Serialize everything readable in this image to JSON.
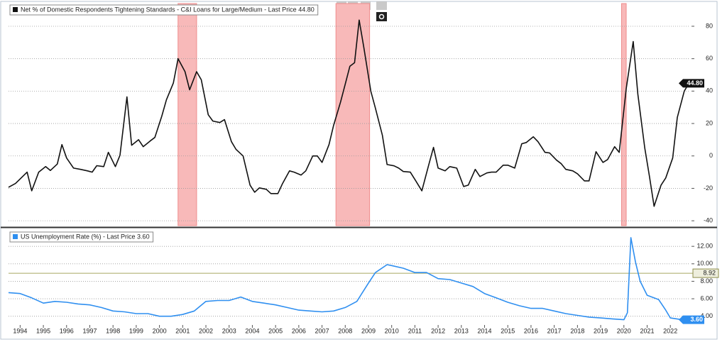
{
  "chart_data": [
    {
      "type": "line",
      "xlim": [
        1993.5,
        2022.85
      ],
      "ylim": [
        -43,
        94
      ],
      "yticks": [
        -40,
        -20,
        0,
        20,
        40,
        60,
        80
      ],
      "grid": true,
      "recession_bands": [
        [
          2000.8,
          2001.6
        ],
        [
          2007.6,
          2009.05
        ],
        [
          2019.9,
          2020.1
        ]
      ],
      "last_value": {
        "value": 44.8,
        "label": "44.80"
      },
      "x": [
        1993.5,
        1993.8,
        1994.3,
        1994.5,
        1994.8,
        1995.1,
        1995.3,
        1995.6,
        1995.8,
        1996.0,
        1996.3,
        1996.6,
        1996.9,
        1997.1,
        1997.3,
        1997.6,
        1997.8,
        1998.1,
        1998.3,
        1998.6,
        1998.8,
        1999.1,
        1999.3,
        1999.6,
        1999.8,
        2000.1,
        2000.3,
        2000.6,
        2000.8,
        2001.1,
        2001.3,
        2001.6,
        2001.8,
        2002.1,
        2002.3,
        2002.6,
        2002.8,
        2003.1,
        2003.3,
        2003.6,
        2003.9,
        2004.1,
        2004.3,
        2004.6,
        2004.8,
        2005.1,
        2005.3,
        2005.6,
        2005.8,
        2006.1,
        2006.3,
        2006.6,
        2006.8,
        2007.0,
        2007.3,
        2007.5,
        2007.8,
        2008.0,
        2008.2,
        2008.4,
        2008.6,
        2008.8,
        2009.1,
        2009.3,
        2009.6,
        2009.8,
        2010.1,
        2010.3,
        2010.5,
        2010.8,
        2011.0,
        2011.3,
        2011.6,
        2011.8,
        2012.0,
        2012.3,
        2012.5,
        2012.8,
        2013.1,
        2013.3,
        2013.6,
        2013.8,
        2014.1,
        2014.3,
        2014.5,
        2014.8,
        2015.0,
        2015.3,
        2015.6,
        2015.8,
        2016.1,
        2016.3,
        2016.6,
        2016.8,
        2017.1,
        2017.3,
        2017.5,
        2017.8,
        2018.0,
        2018.3,
        2018.5,
        2018.8,
        2019.1,
        2019.3,
        2019.6,
        2019.8,
        2020.1,
        2020.4,
        2020.6,
        2020.9,
        2021.1,
        2021.3,
        2021.6,
        2021.8,
        2022.1,
        2022.3,
        2022.6,
        2022.8
      ],
      "series": [
        {
          "name": "Net % of Domestic Respondents Tightening Standards - C&I Loans for Large/Medium - Last Price 44.80",
          "color": "#111111",
          "values": [
            -19.3,
            -17,
            -10,
            -21.5,
            -10,
            -6.6,
            -9,
            -5,
            7,
            -1.3,
            -7.5,
            -8.3,
            -9.2,
            -10,
            -6,
            -6.6,
            2.2,
            -6.6,
            0.4,
            36.4,
            6.6,
            10,
            5.7,
            9.2,
            11.4,
            24.6,
            34.6,
            45,
            60,
            52,
            40.8,
            52,
            47,
            25.4,
            21.5,
            20.6,
            22.4,
            8.8,
            4,
            0,
            -18,
            -22.4,
            -19.7,
            -20.6,
            -23.2,
            -23.2,
            -17,
            -9.2,
            -10,
            -11.8,
            -9.2,
            0,
            0,
            -4,
            7,
            18.9,
            33.3,
            44.3,
            55.3,
            57.5,
            83.8,
            67.1,
            40,
            29.4,
            12.7,
            -5.3,
            -6.1,
            -7.5,
            -9.6,
            -10,
            -14.5,
            -21.5,
            -5.3,
            5.3,
            -7.5,
            -9.2,
            -6.6,
            -7.5,
            -18.9,
            -18,
            -8.3,
            -12.7,
            -10.5,
            -10,
            -10,
            -5.7,
            -5.7,
            -7.5,
            7.5,
            8.3,
            11.8,
            8.8,
            2.2,
            1.8,
            -2.6,
            -4.8,
            -8.3,
            -9.2,
            -11,
            -15.4,
            -15.4,
            2.6,
            -4,
            -2.2,
            5.7,
            2.2,
            41.7,
            70.6,
            38.2,
            4.8,
            -12.7,
            -31.1,
            -18,
            -13.6,
            -1.3,
            23.7,
            40,
            44.8
          ]
        }
      ]
    },
    {
      "type": "line",
      "xlim": [
        1993.5,
        2022.85
      ],
      "ylim": [
        3.0,
        13.8
      ],
      "yticks": [
        {
          "value": 4,
          "label": "4.00"
        },
        {
          "value": 6,
          "label": "6.00"
        },
        {
          "value": 8,
          "label": "8.00"
        },
        {
          "value": 10,
          "label": "10.00"
        },
        {
          "value": 12,
          "label": "12.00"
        }
      ],
      "xticks": [
        {
          "value": 1994,
          "label": "1994"
        },
        {
          "value": 1995,
          "label": "1995"
        },
        {
          "value": 1996,
          "label": "1996"
        },
        {
          "value": 1997,
          "label": "1997"
        },
        {
          "value": 1998,
          "label": "1998"
        },
        {
          "value": 1999,
          "label": "1999"
        },
        {
          "value": 2000,
          "label": "2000"
        },
        {
          "value": 2001,
          "label": "2001"
        },
        {
          "value": 2002,
          "label": "2002"
        },
        {
          "value": 2003,
          "label": "2003"
        },
        {
          "value": 2004,
          "label": "2004"
        },
        {
          "value": 2005,
          "label": "2005"
        },
        {
          "value": 2006,
          "label": "2006"
        },
        {
          "value": 2007,
          "label": "2007"
        },
        {
          "value": 2008,
          "label": "2008"
        },
        {
          "value": 2009,
          "label": "2009"
        },
        {
          "value": 2010,
          "label": "2010"
        },
        {
          "value": 2011,
          "label": "2011"
        },
        {
          "value": 2012,
          "label": "2012"
        },
        {
          "value": 2013,
          "label": "2013"
        },
        {
          "value": 2014,
          "label": "2014"
        },
        {
          "value": 2015,
          "label": "2015"
        },
        {
          "value": 2016,
          "label": "2016"
        },
        {
          "value": 2017,
          "label": "2017"
        },
        {
          "value": 2018,
          "label": "2018"
        },
        {
          "value": 2019,
          "label": "2019"
        },
        {
          "value": 2020,
          "label": "2020"
        },
        {
          "value": 2021,
          "label": "2021"
        },
        {
          "value": 2022,
          "label": "2022"
        }
      ],
      "grid": true,
      "reference_line": {
        "value": 8.92,
        "label": "8.92"
      },
      "last_value": {
        "value": 3.6,
        "label": "3.60"
      },
      "x": [
        1993.5,
        1994,
        1994.5,
        1995,
        1995.5,
        1996,
        1996.5,
        1997,
        1997.5,
        1998,
        1998.5,
        1999,
        1999.5,
        2000,
        2000.5,
        2001,
        2001.5,
        2002,
        2002.5,
        2003,
        2003.5,
        2004,
        2004.5,
        2005,
        2005.5,
        2006,
        2006.5,
        2007,
        2007.5,
        2008,
        2008.5,
        2009,
        2009.3,
        2009.8,
        2010,
        2010.5,
        2011,
        2011.5,
        2012,
        2012.5,
        2013,
        2013.5,
        2014,
        2014.5,
        2015,
        2015.5,
        2016,
        2016.5,
        2017,
        2017.5,
        2018,
        2018.5,
        2019,
        2019.5,
        2020,
        2020.15,
        2020.3,
        2020.5,
        2020.7,
        2021,
        2021.5,
        2021.8,
        2022,
        2022.5,
        2022.8
      ],
      "series": [
        {
          "name": "US Unemployment Rate (%) - Last Price 3.60",
          "color": "#2f8ff0",
          "values": [
            6.7,
            6.6,
            6.1,
            5.5,
            5.7,
            5.6,
            5.4,
            5.3,
            5.0,
            4.6,
            4.5,
            4.3,
            4.3,
            4.0,
            4.0,
            4.2,
            4.6,
            5.7,
            5.8,
            5.8,
            6.2,
            5.7,
            5.5,
            5.3,
            5.0,
            4.7,
            4.6,
            4.5,
            4.6,
            5.0,
            5.7,
            7.8,
            9.0,
            9.9,
            9.8,
            9.5,
            9.0,
            9.0,
            8.3,
            8.2,
            7.8,
            7.4,
            6.6,
            6.1,
            5.6,
            5.2,
            4.9,
            4.9,
            4.6,
            4.3,
            4.1,
            3.9,
            3.8,
            3.7,
            3.6,
            4.4,
            13.0,
            10.2,
            8.0,
            6.4,
            5.9,
            4.7,
            3.8,
            3.6,
            3.6
          ]
        }
      ]
    }
  ]
}
